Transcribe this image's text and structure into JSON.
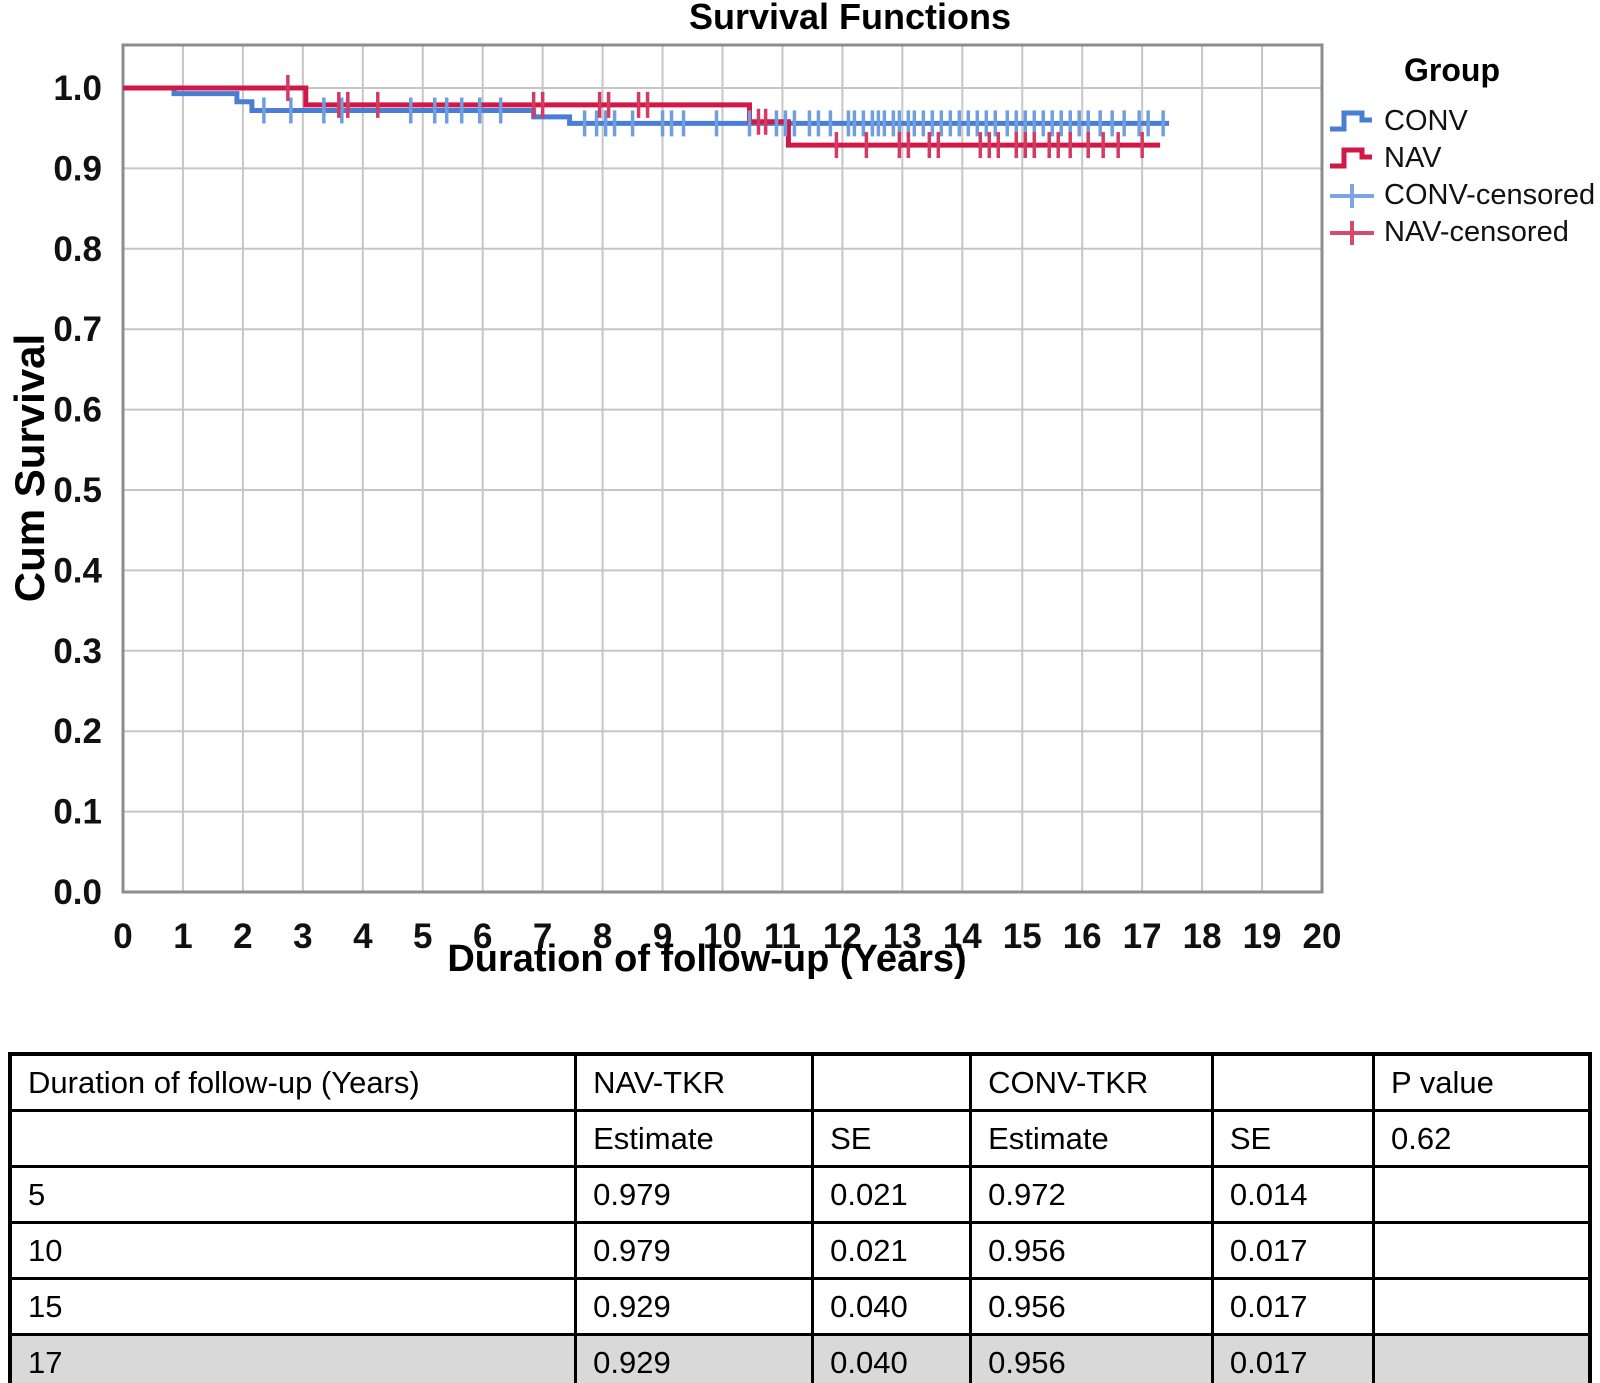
{
  "chart_data": {
    "type": "line",
    "subtype": "kaplan-meier-step",
    "title": "Survival Functions",
    "xlabel": "Duration of follow-up (Years)",
    "ylabel": "Cum Survival",
    "xlim": [
      0,
      20
    ],
    "ylim": [
      0,
      1.05
    ],
    "grid": true,
    "grid_color": "#c6c6c6",
    "frame_color": "#8d8d8d",
    "x_ticks": [
      "0",
      "1",
      "2",
      "3",
      "4",
      "5",
      "6",
      "7",
      "8",
      "9",
      "10",
      "11",
      "12",
      "13",
      "14",
      "15",
      "16",
      "17",
      "18",
      "19",
      "20"
    ],
    "y_ticks": [
      "0.0",
      "0.1",
      "0.2",
      "0.3",
      "0.4",
      "0.5",
      "0.6",
      "0.7",
      "0.8",
      "0.9",
      "1.0"
    ],
    "legend": {
      "title": "Group",
      "position": "right",
      "items": [
        {
          "label": "CONV",
          "type": "step-line",
          "color": "#4a7ed5"
        },
        {
          "label": "NAV",
          "type": "step-line",
          "color": "#d11947"
        },
        {
          "label": "CONV-censored",
          "type": "plus-marker",
          "color": "#7ca6e2"
        },
        {
          "label": "NAV-censored",
          "type": "plus-marker",
          "color": "#d8476c"
        }
      ]
    },
    "series": [
      {
        "name": "CONV",
        "color": "#4a7ed5",
        "censor_color": "#6f9fe0",
        "points": [
          [
            0,
            1.0
          ],
          [
            0.85,
            1.0
          ],
          [
            0.85,
            0.993
          ],
          [
            1.9,
            0.993
          ],
          [
            1.9,
            0.983
          ],
          [
            2.15,
            0.983
          ],
          [
            2.15,
            0.972
          ],
          [
            6.85,
            0.972
          ],
          [
            6.85,
            0.964
          ],
          [
            7.45,
            0.964
          ],
          [
            7.45,
            0.956
          ],
          [
            17.45,
            0.956
          ]
        ],
        "censored": [
          [
            2.35,
            0.972
          ],
          [
            2.8,
            0.972
          ],
          [
            3.35,
            0.972
          ],
          [
            3.65,
            0.972
          ],
          [
            4.8,
            0.972
          ],
          [
            5.2,
            0.972
          ],
          [
            5.4,
            0.972
          ],
          [
            5.65,
            0.972
          ],
          [
            5.95,
            0.972
          ],
          [
            6.3,
            0.972
          ],
          [
            7.7,
            0.956
          ],
          [
            7.9,
            0.956
          ],
          [
            8.05,
            0.956
          ],
          [
            8.2,
            0.956
          ],
          [
            8.5,
            0.956
          ],
          [
            9.0,
            0.956
          ],
          [
            9.15,
            0.956
          ],
          [
            9.35,
            0.956
          ],
          [
            9.9,
            0.956
          ],
          [
            10.45,
            0.956
          ],
          [
            10.9,
            0.956
          ],
          [
            11.05,
            0.956
          ],
          [
            11.2,
            0.956
          ],
          [
            11.45,
            0.956
          ],
          [
            11.6,
            0.956
          ],
          [
            11.8,
            0.956
          ],
          [
            12.1,
            0.956
          ],
          [
            12.2,
            0.956
          ],
          [
            12.35,
            0.956
          ],
          [
            12.5,
            0.956
          ],
          [
            12.6,
            0.956
          ],
          [
            12.7,
            0.956
          ],
          [
            12.85,
            0.956
          ],
          [
            12.95,
            0.956
          ],
          [
            13.1,
            0.956
          ],
          [
            13.2,
            0.956
          ],
          [
            13.35,
            0.956
          ],
          [
            13.5,
            0.956
          ],
          [
            13.65,
            0.956
          ],
          [
            13.8,
            0.956
          ],
          [
            13.95,
            0.956
          ],
          [
            14.1,
            0.956
          ],
          [
            14.25,
            0.956
          ],
          [
            14.4,
            0.956
          ],
          [
            14.55,
            0.956
          ],
          [
            14.75,
            0.956
          ],
          [
            14.9,
            0.956
          ],
          [
            15.05,
            0.956
          ],
          [
            15.2,
            0.956
          ],
          [
            15.35,
            0.956
          ],
          [
            15.5,
            0.956
          ],
          [
            15.65,
            0.956
          ],
          [
            15.8,
            0.956
          ],
          [
            15.95,
            0.956
          ],
          [
            16.1,
            0.956
          ],
          [
            16.3,
            0.956
          ],
          [
            16.5,
            0.956
          ],
          [
            16.7,
            0.956
          ],
          [
            16.95,
            0.956
          ],
          [
            17.1,
            0.956
          ],
          [
            17.35,
            0.956
          ]
        ]
      },
      {
        "name": "NAV",
        "color": "#d11947",
        "censor_color": "#d43b63",
        "points": [
          [
            0,
            1.0
          ],
          [
            3.05,
            1.0
          ],
          [
            3.05,
            0.979
          ],
          [
            10.45,
            0.979
          ],
          [
            10.45,
            0.958
          ],
          [
            11.1,
            0.958
          ],
          [
            11.1,
            0.929
          ],
          [
            17.3,
            0.929
          ]
        ],
        "censored": [
          [
            2.75,
            1.0
          ],
          [
            3.6,
            0.979
          ],
          [
            3.75,
            0.979
          ],
          [
            4.25,
            0.979
          ],
          [
            6.85,
            0.979
          ],
          [
            7.0,
            0.979
          ],
          [
            7.95,
            0.979
          ],
          [
            8.1,
            0.979
          ],
          [
            8.6,
            0.979
          ],
          [
            8.75,
            0.979
          ],
          [
            10.6,
            0.958
          ],
          [
            10.72,
            0.958
          ],
          [
            11.9,
            0.929
          ],
          [
            12.4,
            0.929
          ],
          [
            12.95,
            0.929
          ],
          [
            13.1,
            0.929
          ],
          [
            13.45,
            0.929
          ],
          [
            13.6,
            0.929
          ],
          [
            14.3,
            0.929
          ],
          [
            14.45,
            0.929
          ],
          [
            14.6,
            0.929
          ],
          [
            14.9,
            0.929
          ],
          [
            15.05,
            0.929
          ],
          [
            15.2,
            0.929
          ],
          [
            15.45,
            0.929
          ],
          [
            15.6,
            0.929
          ],
          [
            15.8,
            0.929
          ],
          [
            16.1,
            0.929
          ],
          [
            16.35,
            0.929
          ],
          [
            16.6,
            0.929
          ],
          [
            17.0,
            0.929
          ]
        ]
      }
    ]
  },
  "table": {
    "header_row_1": [
      "Duration of follow-up (Years)",
      "NAV-TKR",
      "",
      "CONV-TKR",
      "",
      "P value"
    ],
    "header_row_2": [
      "",
      "Estimate",
      "SE",
      "Estimate",
      "SE",
      "0.62"
    ],
    "data_rows": [
      [
        "5",
        "0.979",
        "0.021",
        "0.972",
        "0.014",
        ""
      ],
      [
        "10",
        "0.979",
        "0.021",
        "0.956",
        "0.017",
        ""
      ],
      [
        "15",
        "0.929",
        "0.040",
        "0.956",
        "0.017",
        ""
      ],
      [
        "17",
        "0.929",
        "0.040",
        "0.956",
        "0.017",
        ""
      ]
    ],
    "highlight_row_color": "#d9d9d9"
  }
}
